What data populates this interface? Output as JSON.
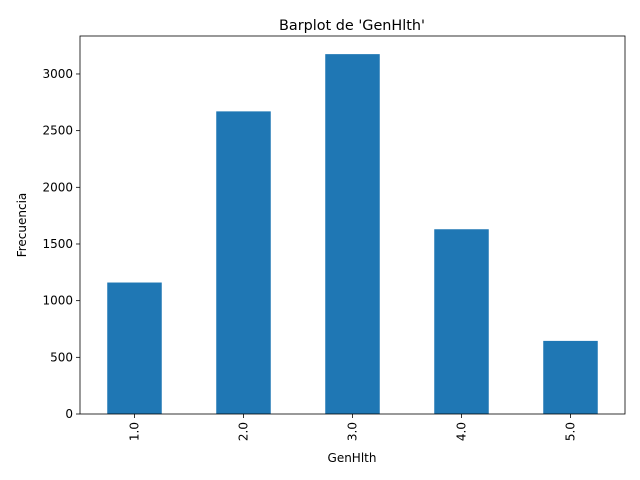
{
  "chart_data": {
    "type": "bar",
    "title": "Barplot de 'GenHlth'",
    "xlabel": "GenHlth",
    "ylabel": "Frecuencia",
    "categories": [
      "1.0",
      "2.0",
      "3.0",
      "4.0",
      "5.0"
    ],
    "values": [
      1160,
      2670,
      3175,
      1630,
      645
    ],
    "yticks": [
      "0",
      "500",
      "1000",
      "1500",
      "2000",
      "2500",
      "3000"
    ],
    "ytick_values": [
      0,
      500,
      1000,
      1500,
      2000,
      2500,
      3000
    ],
    "ylim": [
      0,
      3335
    ],
    "bar_color": "#1f77b4",
    "grid": false,
    "legend": "none"
  }
}
